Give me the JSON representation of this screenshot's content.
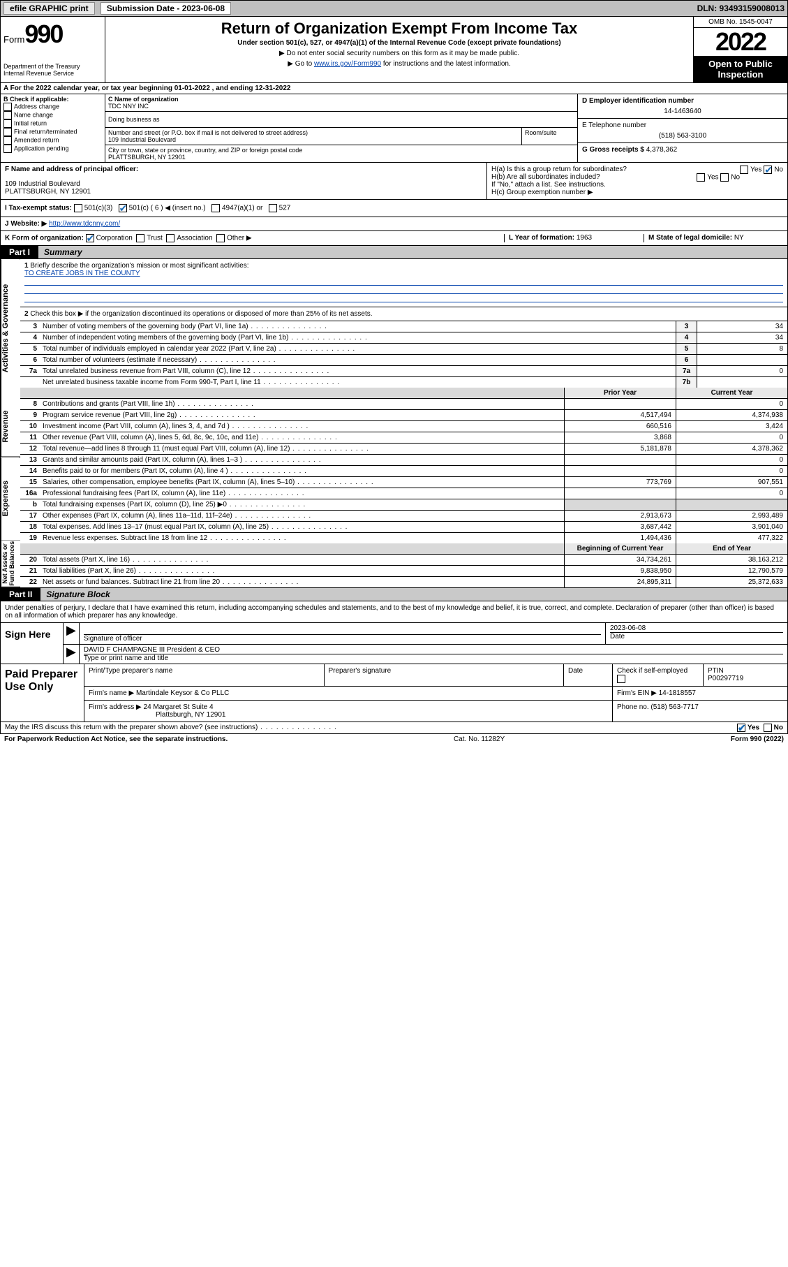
{
  "top_bar": {
    "efile_label": "efile GRAPHIC print",
    "submission_label": "Submission Date - 2023-06-08",
    "dln": "DLN: 93493159008013"
  },
  "header": {
    "form_pre": "Form",
    "form_num": "990",
    "dept": "Department of the Treasury",
    "irs": "Internal Revenue Service",
    "title": "Return of Organization Exempt From Income Tax",
    "sub1": "Under section 501(c), 527, or 4947(a)(1) of the Internal Revenue Code (except private foundations)",
    "sub2": "▶ Do not enter social security numbers on this form as it may be made public.",
    "sub3_pre": "▶ Go to ",
    "sub3_link": "www.irs.gov/Form990",
    "sub3_post": " for instructions and the latest information.",
    "omb": "OMB No. 1545-0047",
    "year": "2022",
    "open": "Open to Public Inspection"
  },
  "row_a": "A For the 2022 calendar year, or tax year beginning 01-01-2022   , and ending 12-31-2022",
  "col_b": {
    "hdr": "B Check if applicable:",
    "items": [
      "Address change",
      "Name change",
      "Initial return",
      "Final return/terminated",
      "Amended return",
      "Application pending"
    ]
  },
  "col_c": {
    "name_label": "C Name of organization",
    "name": "TDC NNY INC",
    "dba_label": "Doing business as",
    "addr_label": "Number and street (or P.O. box if mail is not delivered to street address)",
    "addr": "109 Industrial Boulevard",
    "room_label": "Room/suite",
    "city_label": "City or town, state or province, country, and ZIP or foreign postal code",
    "city": "PLATTSBURGH, NY  12901"
  },
  "col_de": {
    "d_label": "D Employer identification number",
    "d_val": "14-1463640",
    "e_label": "E Telephone number",
    "e_val": "(518) 563-3100",
    "g_label": "G Gross receipts $ ",
    "g_val": "4,378,362"
  },
  "col_f": {
    "lbl": "F Name and address of principal officer:",
    "addr1": "109 Industrial Boulevard",
    "addr2": "PLATTSBURGH, NY  12901"
  },
  "col_h": {
    "ha": "H(a)  Is this a group return for subordinates?",
    "hb": "H(b)  Are all subordinates included?",
    "hb_note": "If \"No,\" attach a list. See instructions.",
    "hc": "H(c)  Group exemption number ▶",
    "yes": "Yes",
    "no": "No",
    "ha_checked": "no"
  },
  "row_i": {
    "lbl": "I   Tax-exempt status:",
    "c3": "501(c)(3)",
    "c": "501(c) ( 6 ) ◀ (insert no.)",
    "a1": "4947(a)(1) or",
    "c527": "527"
  },
  "row_j": {
    "lbl": "J   Website: ▶ ",
    "url": "http://www.tdcnny.com/"
  },
  "row_k": {
    "lbl": "K Form of organization:",
    "opts": [
      "Corporation",
      "Trust",
      "Association",
      "Other ▶"
    ],
    "checked": 0
  },
  "row_l": {
    "lbl": "L Year of formation: ",
    "val": "1963"
  },
  "row_m": {
    "lbl": "M State of legal domicile: ",
    "val": "NY"
  },
  "parts": {
    "p1_tag": "Part I",
    "p1_ttl": "Summary",
    "p2_tag": "Part II",
    "p2_ttl": "Signature Block"
  },
  "p1": {
    "l1": "Briefly describe the organization's mission or most significant activities:",
    "l1_text": "TO CREATE JOBS IN THE COUNTY",
    "l2": "Check this box ▶      if the organization discontinued its operations or disposed of more than 25% of its net assets.",
    "lines_boxed": [
      {
        "n": "3",
        "t": "Number of voting members of the governing body (Part VI, line 1a)",
        "box": "3",
        "v": "34"
      },
      {
        "n": "4",
        "t": "Number of independent voting members of the governing body (Part VI, line 1b)",
        "box": "4",
        "v": "34"
      },
      {
        "n": "5",
        "t": "Total number of individuals employed in calendar year 2022 (Part V, line 2a)",
        "box": "5",
        "v": "8"
      },
      {
        "n": "6",
        "t": "Total number of volunteers (estimate if necessary)",
        "box": "6",
        "v": ""
      },
      {
        "n": "7a",
        "t": "Total unrelated business revenue from Part VIII, column (C), line 12",
        "box": "7a",
        "v": "0"
      },
      {
        "n": "",
        "t": "Net unrelated business taxable income from Form 990-T, Part I, line 11",
        "box": "7b",
        "v": ""
      }
    ],
    "col_hdr_py": "Prior Year",
    "col_hdr_cy": "Current Year",
    "lines_2col": [
      {
        "n": "8",
        "t": "Contributions and grants (Part VIII, line 1h)",
        "py": "",
        "cy": "0",
        "sec": "rev"
      },
      {
        "n": "9",
        "t": "Program service revenue (Part VIII, line 2g)",
        "py": "4,517,494",
        "cy": "4,374,938",
        "sec": "rev"
      },
      {
        "n": "10",
        "t": "Investment income (Part VIII, column (A), lines 3, 4, and 7d )",
        "py": "660,516",
        "cy": "3,424",
        "sec": "rev"
      },
      {
        "n": "11",
        "t": "Other revenue (Part VIII, column (A), lines 5, 6d, 8c, 9c, 10c, and 11e)",
        "py": "3,868",
        "cy": "0",
        "sec": "rev"
      },
      {
        "n": "12",
        "t": "Total revenue—add lines 8 through 11 (must equal Part VIII, column (A), line 12)",
        "py": "5,181,878",
        "cy": "4,378,362",
        "sec": "rev"
      },
      {
        "n": "13",
        "t": "Grants and similar amounts paid (Part IX, column (A), lines 1–3 )",
        "py": "",
        "cy": "0",
        "sec": "exp"
      },
      {
        "n": "14",
        "t": "Benefits paid to or for members (Part IX, column (A), line 4 )",
        "py": "",
        "cy": "0",
        "sec": "exp"
      },
      {
        "n": "15",
        "t": "Salaries, other compensation, employee benefits (Part IX, column (A), lines 5–10)",
        "py": "773,769",
        "cy": "907,551",
        "sec": "exp"
      },
      {
        "n": "16a",
        "t": "Professional fundraising fees (Part IX, column (A), line 11e)",
        "py": "",
        "cy": "0",
        "sec": "exp"
      },
      {
        "n": "b",
        "t": "Total fundraising expenses (Part IX, column (D), line 25) ▶0",
        "py": "",
        "cy": "",
        "sec": "exp",
        "shade": true
      },
      {
        "n": "17",
        "t": "Other expenses (Part IX, column (A), lines 11a–11d, 11f–24e)",
        "py": "2,913,673",
        "cy": "2,993,489",
        "sec": "exp"
      },
      {
        "n": "18",
        "t": "Total expenses. Add lines 13–17 (must equal Part IX, column (A), line 25)",
        "py": "3,687,442",
        "cy": "3,901,040",
        "sec": "exp"
      },
      {
        "n": "19",
        "t": "Revenue less expenses. Subtract line 18 from line 12",
        "py": "1,494,436",
        "cy": "477,322",
        "sec": "exp"
      }
    ],
    "col_hdr_boy": "Beginning of Current Year",
    "col_hdr_eoy": "End of Year",
    "lines_net": [
      {
        "n": "20",
        "t": "Total assets (Part X, line 16)",
        "py": "34,734,261",
        "cy": "38,163,212"
      },
      {
        "n": "21",
        "t": "Total liabilities (Part X, line 26)",
        "py": "9,838,950",
        "cy": "12,790,579"
      },
      {
        "n": "22",
        "t": "Net assets or fund balances. Subtract line 21 from line 20",
        "py": "24,895,311",
        "cy": "25,372,633"
      }
    ],
    "side_labels": [
      "Activities & Governance",
      "Revenue",
      "Expenses",
      "Net Assets or Fund Balances"
    ]
  },
  "sig": {
    "intro": "Under penalties of perjury, I declare that I have examined this return, including accompanying schedules and statements, and to the best of my knowledge and belief, it is true, correct, and complete. Declaration of preparer (other than officer) is based on all information of which preparer has any knowledge.",
    "sign_here": "Sign Here",
    "sig_officer": "Signature of officer",
    "date_lbl": "Date",
    "date_val": "2023-06-08",
    "name_title": "DAVID F CHAMPAGNE III President & CEO",
    "name_title_lbl": "Type or print name and title"
  },
  "paid": {
    "hdr": "Paid Preparer Use Only",
    "r1": {
      "c1": "Print/Type preparer's name",
      "c2": "Preparer's signature",
      "c3": "Date",
      "c4": "Check      if self-employed",
      "c5": "PTIN",
      "ptin": "P00297719"
    },
    "r2": {
      "lbl": "Firm's name    ▶ ",
      "val": "Martindale Keysor & Co PLLC",
      "ein_lbl": "Firm's EIN ▶ ",
      "ein": "14-1818557"
    },
    "r3": {
      "lbl": "Firm's address ▶ ",
      "val1": "24 Margaret St Suite 4",
      "val2": "Plattsburgh, NY  12901",
      "ph_lbl": "Phone no. ",
      "ph": "(518) 563-7717"
    }
  },
  "footer": {
    "q": "May the IRS discuss this return with the preparer shown above? (see instructions)",
    "yes": "Yes",
    "no": "No",
    "pra": "For Paperwork Reduction Act Notice, see the separate instructions.",
    "cat": "Cat. No. 11282Y",
    "form": "Form 990 (2022)"
  },
  "colors": {
    "link": "#0645ad",
    "check": "#1a6bb5",
    "topbar_bg": "#c0c0c0",
    "shade": "#d9d9d9"
  }
}
